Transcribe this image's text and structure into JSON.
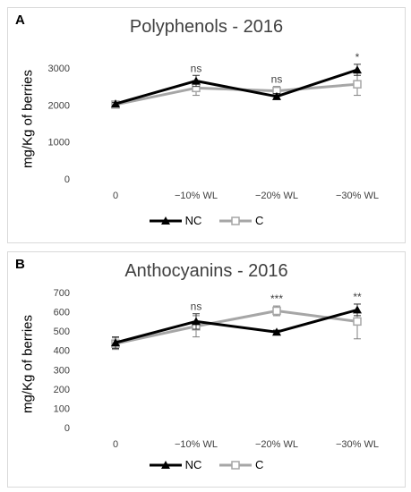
{
  "chart_data": [
    {
      "type": "line",
      "panel_label": "A",
      "title": "Polyphenols - 2016",
      "ylabel": "mg/Kg of berries",
      "xlabel": "",
      "categories": [
        "0",
        "−10% WL",
        "−20% WL",
        "−30% WL"
      ],
      "ylim": [
        0,
        3000
      ],
      "yticks": [
        "0",
        "1000",
        "2000",
        "3000"
      ],
      "grid": false,
      "legend_position": "bottom",
      "significance": [
        "",
        "ns",
        "ns",
        "*"
      ],
      "series": [
        {
          "name": "NC",
          "color": "#000000",
          "marker": "triangle",
          "values": [
            2030,
            2650,
            2230,
            2950
          ],
          "errors": [
            40,
            150,
            80,
            150
          ]
        },
        {
          "name": "C",
          "color": "#a6a6a6",
          "marker": "square",
          "values": [
            2010,
            2460,
            2380,
            2560
          ],
          "errors": [
            40,
            200,
            120,
            300
          ]
        }
      ]
    },
    {
      "type": "line",
      "panel_label": "B",
      "title": "Anthocyanins - 2016",
      "ylabel": "mg/Kg of berries",
      "xlabel": "",
      "categories": [
        "0",
        "−10% WL",
        "−20% WL",
        "−30% WL"
      ],
      "ylim": [
        0,
        700
      ],
      "yticks": [
        "0",
        "100",
        "200",
        "300",
        "400",
        "500",
        "600",
        "700"
      ],
      "grid": false,
      "legend_position": "bottom",
      "significance": [
        "",
        "ns",
        "***",
        "**"
      ],
      "series": [
        {
          "name": "NC",
          "color": "#000000",
          "marker": "triangle",
          "values": [
            440,
            550,
            495,
            610
          ],
          "errors": [
            30,
            40,
            10,
            30
          ]
        },
        {
          "name": "C",
          "color": "#a6a6a6",
          "marker": "square",
          "values": [
            435,
            525,
            605,
            550
          ],
          "errors": [
            30,
            55,
            25,
            90
          ]
        }
      ]
    }
  ]
}
